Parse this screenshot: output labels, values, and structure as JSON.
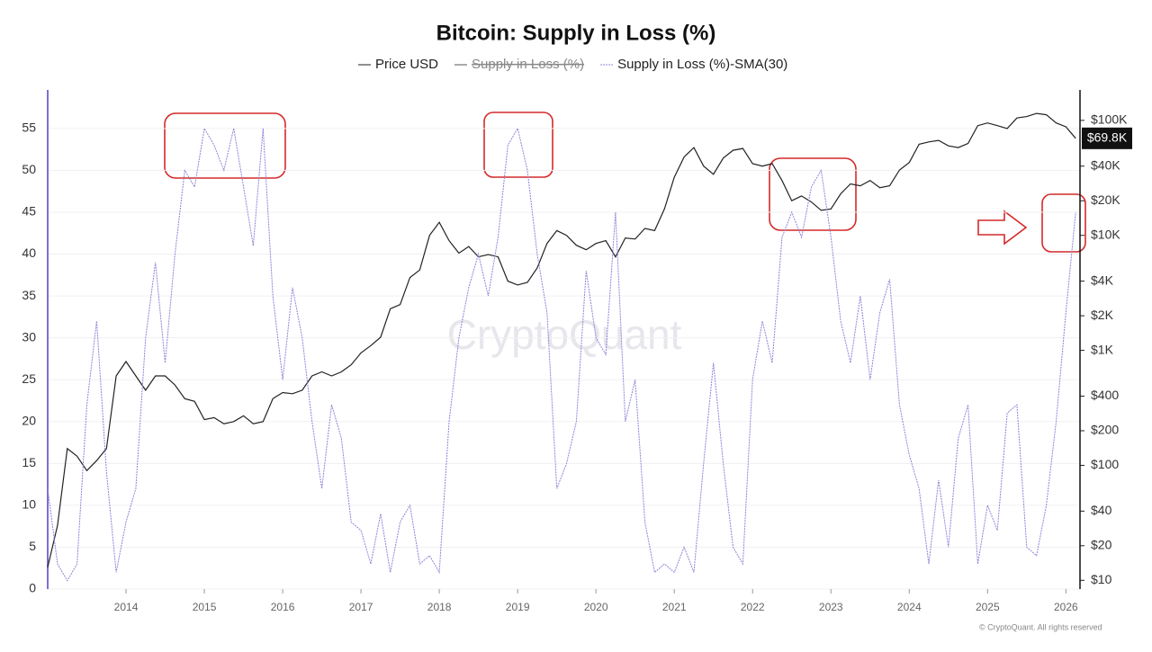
{
  "chart_data": {
    "type": "line",
    "title": "Bitcoin: Supply in Loss (%)",
    "watermark": "CryptoQuant",
    "footer": "© CryptoQuant. All rights reserved",
    "price_label": "$69.8K",
    "x": [
      2013.0,
      2013.125,
      2013.25,
      2013.375,
      2013.5,
      2013.625,
      2013.75,
      2013.875,
      2014.0,
      2014.125,
      2014.25,
      2014.375,
      2014.5,
      2014.625,
      2014.75,
      2014.875,
      2015.0,
      2015.125,
      2015.25,
      2015.375,
      2015.5,
      2015.625,
      2015.75,
      2015.875,
      2016.0,
      2016.125,
      2016.25,
      2016.375,
      2016.5,
      2016.625,
      2016.75,
      2016.875,
      2017.0,
      2017.125,
      2017.25,
      2017.375,
      2017.5,
      2017.625,
      2017.75,
      2017.875,
      2018.0,
      2018.125,
      2018.25,
      2018.375,
      2018.5,
      2018.625,
      2018.75,
      2018.875,
      2019.0,
      2019.125,
      2019.25,
      2019.375,
      2019.5,
      2019.625,
      2019.75,
      2019.875,
      2020.0,
      2020.125,
      2020.25,
      2020.375,
      2020.5,
      2020.625,
      2020.75,
      2020.875,
      2021.0,
      2021.125,
      2021.25,
      2021.375,
      2021.5,
      2021.625,
      2021.75,
      2021.875,
      2022.0,
      2022.125,
      2022.25,
      2022.375,
      2022.5,
      2022.625,
      2022.75,
      2022.875,
      2023.0,
      2023.125,
      2023.25,
      2023.375,
      2023.5,
      2023.625,
      2023.75,
      2023.875,
      2024.0,
      2024.125,
      2024.25,
      2024.375,
      2024.5,
      2024.625,
      2024.75,
      2024.875,
      2025.0,
      2025.125,
      2025.25,
      2025.375,
      2025.5,
      2025.625,
      2025.75,
      2025.875,
      2026.0,
      2026.125
    ],
    "series": [
      {
        "name": "Price USD",
        "color": "#222222",
        "axis": "y2",
        "dash": false,
        "values": [
          13,
          30,
          140,
          120,
          90,
          110,
          140,
          600,
          800,
          600,
          450,
          600,
          600,
          500,
          380,
          360,
          250,
          260,
          230,
          240,
          270,
          230,
          240,
          380,
          430,
          420,
          450,
          600,
          650,
          600,
          650,
          750,
          950,
          1100,
          1300,
          2300,
          2500,
          4300,
          5000,
          10000,
          13000,
          9000,
          7000,
          8000,
          6500,
          6800,
          6500,
          4000,
          3700,
          3900,
          5200,
          8500,
          11000,
          10000,
          8200,
          7500,
          8500,
          9000,
          6500,
          9500,
          9300,
          11500,
          11000,
          17000,
          32000,
          48000,
          58000,
          40000,
          34000,
          47000,
          55000,
          57000,
          42000,
          40000,
          42000,
          30000,
          20000,
          22000,
          19500,
          16500,
          17000,
          23000,
          28000,
          27000,
          30000,
          26000,
          27000,
          37000,
          43000,
          62000,
          65000,
          67000,
          60000,
          58000,
          63000,
          90000,
          95000,
          90000,
          85000,
          105000,
          108000,
          115000,
          112000,
          95000,
          88000,
          69800
        ]
      },
      {
        "name": "Supply in Loss (%)",
        "color": "#555555",
        "hidden": true
      },
      {
        "name": "Supply in Loss (%)-SMA(30)",
        "color": "#8c84d8",
        "dash": true,
        "values": [
          12,
          3,
          1,
          3,
          22,
          32,
          14,
          2,
          8,
          12,
          30,
          39,
          27,
          40,
          50,
          48,
          55,
          53,
          50,
          55,
          48,
          41,
          55,
          35,
          25,
          36,
          30,
          20,
          12,
          22,
          18,
          8,
          7,
          3,
          9,
          2,
          8,
          10,
          3,
          4,
          2,
          20,
          30,
          36,
          40,
          35,
          42,
          53,
          55,
          50,
          40,
          33,
          12,
          15,
          20,
          38,
          30,
          28,
          45,
          20,
          25,
          8,
          2,
          3,
          2,
          5,
          2,
          15,
          27,
          15,
          5,
          3,
          25,
          32,
          27,
          42,
          45,
          42,
          48,
          50,
          42,
          32,
          27,
          35,
          25,
          33,
          37,
          22,
          16,
          12,
          3,
          13,
          5,
          18,
          22,
          3,
          10,
          7,
          21,
          22,
          5,
          4,
          10,
          20,
          33,
          45
        ]
      }
    ],
    "xlim": [
      2013.0,
      2026.18
    ],
    "xticks": [
      2014,
      2015,
      2016,
      2017,
      2018,
      2019,
      2020,
      2021,
      2022,
      2023,
      2024,
      2025,
      2026
    ],
    "ylim": [
      0,
      59.6
    ],
    "yticks": [
      0,
      5,
      10,
      15,
      20,
      25,
      30,
      35,
      40,
      45,
      50,
      55
    ],
    "y2lim": [
      8.4,
      184000
    ],
    "y2log": true,
    "y2ticks": [
      {
        "value": 10,
        "label": "$10"
      },
      {
        "value": 20,
        "label": "$20"
      },
      {
        "value": 40,
        "label": "$40"
      },
      {
        "value": 100,
        "label": "$100"
      },
      {
        "value": 200,
        "label": "$200"
      },
      {
        "value": 400,
        "label": "$400"
      },
      {
        "value": 1000,
        "label": "$1K"
      },
      {
        "value": 2000,
        "label": "$2K"
      },
      {
        "value": 4000,
        "label": "$4K"
      },
      {
        "value": 10000,
        "label": "$10K"
      },
      {
        "value": 20000,
        "label": "$20K"
      },
      {
        "value": 40000,
        "label": "$40K"
      },
      {
        "value": 100000,
        "label": "$100K"
      }
    ],
    "grid": true
  }
}
